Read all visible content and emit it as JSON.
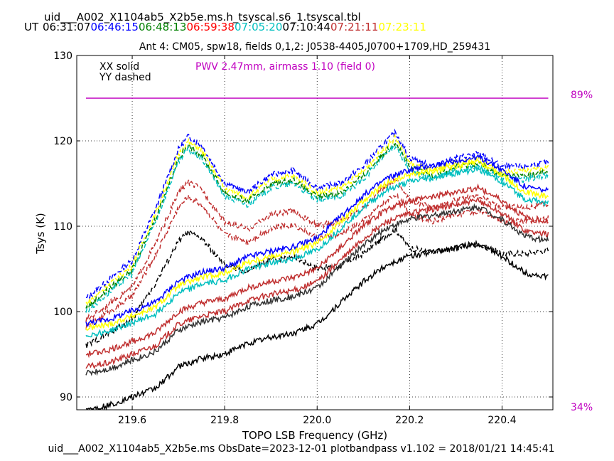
{
  "chart_data": {
    "type": "line",
    "title": "uid___A002_X1104ab5_X2b5e.ms.h_tsyscal.s6_1.tsyscal.tbl",
    "ut_label": "UT",
    "times": [
      {
        "text": "06:31:07",
        "color": "#000000"
      },
      {
        "text": "06:46:15",
        "color": "#0000ff"
      },
      {
        "text": "06:48:13",
        "color": "#008000"
      },
      {
        "text": "06:59:38",
        "color": "#ff0000"
      },
      {
        "text": "07:05:20",
        "color": "#00bfbf"
      },
      {
        "text": "07:10:44",
        "color": "#000000"
      },
      {
        "text": "07:21:11",
        "color": "#c03030"
      },
      {
        "text": "07:23:11",
        "color": "#ffff00"
      }
    ],
    "subtitle": "Ant 4: CM05,  spw18,  fields 0,1,2: J0538-4405,J0700+1709,HD_259431",
    "legend": [
      "XX solid",
      "YY dashed"
    ],
    "pwv_label": "PWV 2.47mm, airmass 1.10 (field 0)",
    "pwv_color": "#c000c0",
    "right_labels": {
      "top": "89%",
      "bottom": "34%"
    },
    "xlabel": "TOPO LSB Frequency (GHz)",
    "ylabel": "Tsys (K)",
    "xlim": [
      219.48,
      220.51
    ],
    "ylim": [
      88.5,
      130
    ],
    "xticks": [
      "219.6",
      "219.8",
      "220.0",
      "220.2",
      "220.4"
    ],
    "yticks": [
      "90",
      "100",
      "110",
      "120",
      "130"
    ],
    "grid": true,
    "transmission_line_y": 125,
    "footer": "uid___A002_X1104ab5_X2b5e.ms  ObsDate=2023-12-01   plotbandpass v1.102 = 2018/01/21 14:45:41",
    "dashed_base": {
      "x": [
        219.5,
        219.6,
        219.65,
        219.7,
        219.72,
        219.75,
        219.8,
        219.85,
        219.9,
        219.95,
        220.0,
        220.05,
        220.1,
        220.15,
        220.17,
        220.2,
        220.25,
        220.3,
        220.35,
        220.4,
        220.45,
        220.5
      ],
      "y": [
        101.5,
        106.0,
        112.0,
        119.0,
        120.5,
        119.5,
        115.0,
        114.0,
        116.0,
        116.5,
        114.5,
        115.0,
        117.0,
        120.0,
        121.0,
        118.0,
        117.0,
        118.0,
        118.5,
        117.0,
        117.0,
        117.5
      ]
    },
    "solid_base": {
      "x": [
        219.5,
        219.55,
        219.6,
        219.65,
        219.7,
        219.75,
        219.8,
        219.85,
        219.9,
        219.95,
        220.0,
        220.05,
        220.1,
        220.15,
        220.2,
        220.25,
        220.3,
        220.35,
        220.4,
        220.45,
        220.5
      ],
      "y": [
        98.0,
        98.5,
        99.5,
        100.5,
        103.0,
        104.0,
        104.5,
        105.8,
        106.5,
        107.0,
        108.0,
        110.5,
        113.0,
        115.0,
        116.0,
        116.5,
        117.0,
        117.5,
        116.0,
        114.0,
        113.5
      ]
    },
    "series": [
      {
        "color": "#0000ff",
        "style": "dashed",
        "offset": 0.0
      },
      {
        "color": "#ffff00",
        "style": "dashed",
        "offset": -0.6
      },
      {
        "color": "#008000",
        "style": "dashed",
        "offset": -1.1
      },
      {
        "color": "#00bfbf",
        "style": "dashed",
        "offset": -1.5
      },
      {
        "color": "#c03030",
        "style": "dashed",
        "offset": -4.2,
        "scale": 0.85
      },
      {
        "color": "#c03030",
        "style": "dashed",
        "offset": -5.6,
        "scale": 0.8
      },
      {
        "color": "#000000",
        "style": "dashed",
        "offset": -9.0,
        "scale": 0.7
      },
      {
        "color": "#0000ff",
        "style": "solid",
        "offset": 0.6
      },
      {
        "color": "#ffff00",
        "style": "solid",
        "offset": 0.0
      },
      {
        "color": "#00bfbf",
        "style": "solid",
        "offset": -0.8
      },
      {
        "color": "#c03030",
        "style": "solid",
        "offset": -3.0
      },
      {
        "color": "#c03030",
        "style": "solid",
        "offset": -4.5
      },
      {
        "color": "#333333",
        "style": "solid",
        "offset": -5.2
      },
      {
        "color": "#000000",
        "style": "solid",
        "offset": -9.5
      }
    ]
  }
}
